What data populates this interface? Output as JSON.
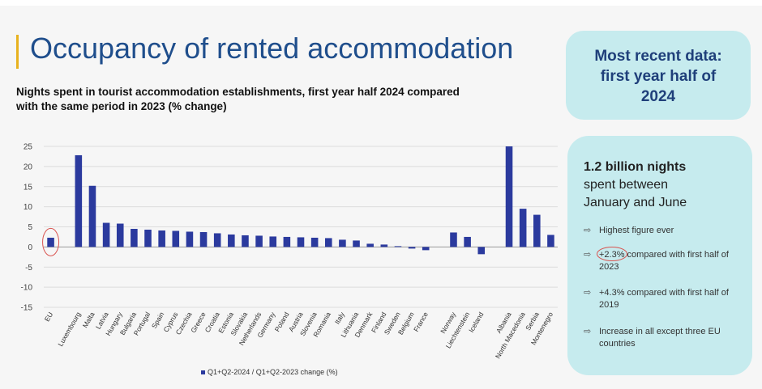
{
  "title": "Occupancy of rented accommodation",
  "subtitle": "Nights spent in tourist accommodation establishments, first year half 2024 compared with the same period in 2023 (% change)",
  "legend_label": "Q1+Q2-2024 / Q1+Q2-2023 change (%)",
  "recent_box": {
    "line1": "Most recent data:",
    "line2": "first year half of",
    "line3": "2024"
  },
  "facts_box": {
    "headline": "1.2 billion nights",
    "sub1": "spent between",
    "sub2": "January and June",
    "bullets": [
      {
        "text": "Highest figure ever"
      },
      {
        "text": "+2.3% compared with first half of 2023"
      },
      {
        "text": "+4.3% compared with first half of 2019"
      },
      {
        "text": "Increase in all except three EU countries"
      }
    ],
    "arrow_icon": "hollow-arrow-icon"
  },
  "colors": {
    "bar": "#2b3a9e",
    "title": "#1f4e8c",
    "box": "#c6ebee",
    "highlight_circle": "#d9534f"
  },
  "chart_data": {
    "type": "bar",
    "title": "",
    "xlabel": "",
    "ylabel": "",
    "ylim": [
      -15,
      25
    ],
    "yticks": [
      25,
      20,
      15,
      10,
      5,
      0,
      -5,
      -10,
      -15
    ],
    "grid": true,
    "highlighted_category": "EU",
    "categories": [
      "EU",
      "",
      "Luxembourg",
      "Malta",
      "Latvia",
      "Hungary",
      "Bulgaria",
      "Portugal",
      "Spain",
      "Cyprus",
      "Czechia",
      "Greece",
      "Croatia",
      "Estonia",
      "Slovakia",
      "Netherlands",
      "Germany",
      "Poland",
      "Austria",
      "Slovenia",
      "Romania",
      "Italy",
      "Lithuania",
      "Denmark",
      "Finland",
      "Sweden",
      "Belgium",
      "France",
      "",
      "Norway",
      "Liechtenstein",
      "Iceland",
      "",
      "Albania",
      "North Macedonia",
      "Serbia",
      "Montenegro"
    ],
    "series": [
      {
        "name": "Q1+Q2-2024 / Q1+Q2-2023 change (%)",
        "values": [
          2.3,
          null,
          22.8,
          15.2,
          6.0,
          5.8,
          4.5,
          4.3,
          4.1,
          4.0,
          3.8,
          3.7,
          3.4,
          3.1,
          2.9,
          2.8,
          2.6,
          2.5,
          2.4,
          2.3,
          2.2,
          1.8,
          1.6,
          0.8,
          0.6,
          0.2,
          -0.4,
          -0.8,
          null,
          3.6,
          2.5,
          -1.8,
          null,
          25.0,
          9.5,
          8.0,
          3.0
        ]
      }
    ]
  }
}
